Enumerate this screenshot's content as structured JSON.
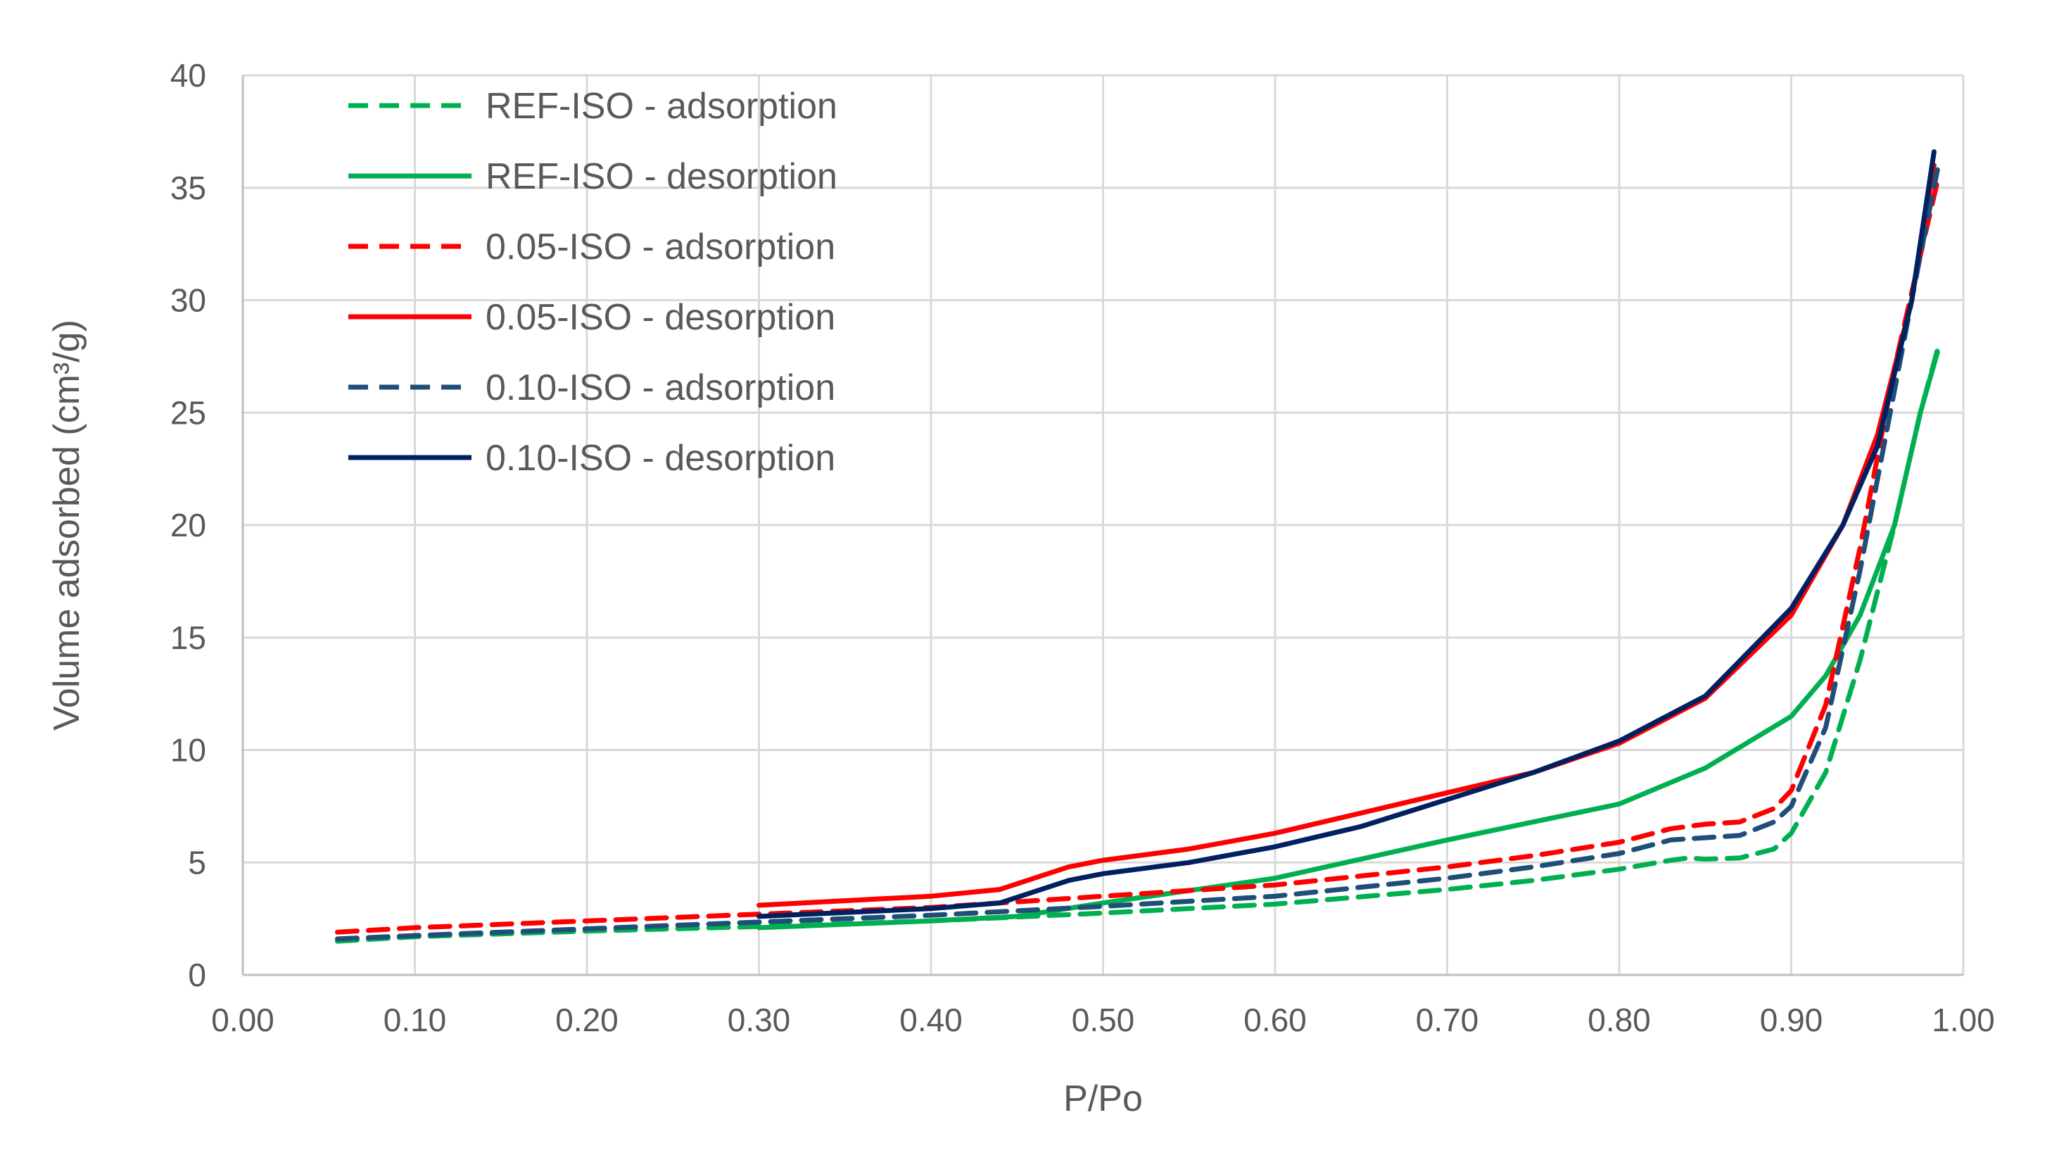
{
  "chart_data": {
    "type": "line",
    "title": "",
    "xlabel": "P/Po",
    "ylabel": "Volume adsorbed (cm³/g)",
    "xlim": [
      0,
      1
    ],
    "ylim": [
      0,
      40
    ],
    "grid": true,
    "legend_position": "top-left",
    "x_ticks": [
      "0.00",
      "0.10",
      "0.20",
      "0.30",
      "0.40",
      "0.50",
      "0.60",
      "0.70",
      "0.80",
      "0.90",
      "1.00"
    ],
    "y_ticks": [
      "0",
      "5",
      "10",
      "15",
      "20",
      "25",
      "30",
      "35",
      "40"
    ],
    "series": [
      {
        "name": "REF-ISO - adsorption",
        "color": "#00b050",
        "dash": "dashed",
        "points": [
          [
            0.055,
            1.5
          ],
          [
            0.1,
            1.7
          ],
          [
            0.2,
            1.95
          ],
          [
            0.3,
            2.15
          ],
          [
            0.4,
            2.4
          ],
          [
            0.5,
            2.75
          ],
          [
            0.6,
            3.15
          ],
          [
            0.7,
            3.8
          ],
          [
            0.75,
            4.2
          ],
          [
            0.8,
            4.7
          ],
          [
            0.83,
            5.1
          ],
          [
            0.84,
            5.2
          ],
          [
            0.85,
            5.15
          ],
          [
            0.87,
            5.2
          ],
          [
            0.89,
            5.6
          ],
          [
            0.9,
            6.3
          ],
          [
            0.92,
            9
          ],
          [
            0.94,
            14
          ],
          [
            0.96,
            20
          ],
          [
            0.975,
            25
          ],
          [
            0.985,
            27.8
          ]
        ]
      },
      {
        "name": "REF-ISO - desorption",
        "color": "#00b050",
        "dash": "solid",
        "points": [
          [
            0.3,
            2.1
          ],
          [
            0.4,
            2.4
          ],
          [
            0.45,
            2.6
          ],
          [
            0.5,
            3.2
          ],
          [
            0.6,
            4.3
          ],
          [
            0.7,
            6.0
          ],
          [
            0.75,
            6.8
          ],
          [
            0.8,
            7.6
          ],
          [
            0.85,
            9.2
          ],
          [
            0.9,
            11.5
          ],
          [
            0.92,
            13.3
          ],
          [
            0.94,
            16
          ],
          [
            0.96,
            20
          ],
          [
            0.975,
            25
          ],
          [
            0.985,
            27.7
          ]
        ]
      },
      {
        "name": "0.05-ISO - adsorption",
        "color": "#ff0000",
        "dash": "dashed",
        "points": [
          [
            0.055,
            1.9
          ],
          [
            0.1,
            2.1
          ],
          [
            0.2,
            2.4
          ],
          [
            0.3,
            2.7
          ],
          [
            0.4,
            3.0
          ],
          [
            0.5,
            3.5
          ],
          [
            0.6,
            4.0
          ],
          [
            0.7,
            4.8
          ],
          [
            0.75,
            5.3
          ],
          [
            0.8,
            5.9
          ],
          [
            0.83,
            6.5
          ],
          [
            0.85,
            6.7
          ],
          [
            0.87,
            6.8
          ],
          [
            0.89,
            7.4
          ],
          [
            0.9,
            8.2
          ],
          [
            0.92,
            12
          ],
          [
            0.94,
            19
          ],
          [
            0.96,
            27
          ],
          [
            0.975,
            32
          ],
          [
            0.985,
            35.3
          ]
        ]
      },
      {
        "name": "0.05-ISO - desorption",
        "color": "#ff0000",
        "dash": "solid",
        "points": [
          [
            0.3,
            3.1
          ],
          [
            0.4,
            3.5
          ],
          [
            0.44,
            3.8
          ],
          [
            0.46,
            4.3
          ],
          [
            0.48,
            4.8
          ],
          [
            0.5,
            5.1
          ],
          [
            0.55,
            5.6
          ],
          [
            0.6,
            6.3
          ],
          [
            0.65,
            7.2
          ],
          [
            0.7,
            8.1
          ],
          [
            0.75,
            9.0
          ],
          [
            0.8,
            10.3
          ],
          [
            0.85,
            12.3
          ],
          [
            0.9,
            16
          ],
          [
            0.93,
            20
          ],
          [
            0.95,
            24
          ],
          [
            0.97,
            30
          ],
          [
            0.983,
            36
          ]
        ]
      },
      {
        "name": "0.10-ISO - adsorption",
        "color": "#1f4e79",
        "dash": "dashed",
        "points": [
          [
            0.055,
            1.6
          ],
          [
            0.1,
            1.75
          ],
          [
            0.2,
            2.05
          ],
          [
            0.3,
            2.35
          ],
          [
            0.4,
            2.65
          ],
          [
            0.5,
            3.05
          ],
          [
            0.6,
            3.5
          ],
          [
            0.7,
            4.3
          ],
          [
            0.75,
            4.8
          ],
          [
            0.8,
            5.4
          ],
          [
            0.83,
            6.0
          ],
          [
            0.85,
            6.1
          ],
          [
            0.87,
            6.2
          ],
          [
            0.89,
            6.8
          ],
          [
            0.9,
            7.5
          ],
          [
            0.92,
            11
          ],
          [
            0.94,
            18
          ],
          [
            0.96,
            26
          ],
          [
            0.975,
            32
          ],
          [
            0.985,
            35.8
          ]
        ]
      },
      {
        "name": "0.10-ISO - desorption",
        "color": "#002060",
        "dash": "solid",
        "points": [
          [
            0.3,
            2.6
          ],
          [
            0.4,
            2.95
          ],
          [
            0.44,
            3.2
          ],
          [
            0.46,
            3.7
          ],
          [
            0.48,
            4.2
          ],
          [
            0.5,
            4.5
          ],
          [
            0.55,
            5.0
          ],
          [
            0.6,
            5.7
          ],
          [
            0.65,
            6.6
          ],
          [
            0.7,
            7.8
          ],
          [
            0.75,
            9.0
          ],
          [
            0.8,
            10.4
          ],
          [
            0.85,
            12.4
          ],
          [
            0.9,
            16.3
          ],
          [
            0.93,
            20
          ],
          [
            0.95,
            23.5
          ],
          [
            0.97,
            30
          ],
          [
            0.983,
            36.6
          ]
        ]
      }
    ]
  }
}
